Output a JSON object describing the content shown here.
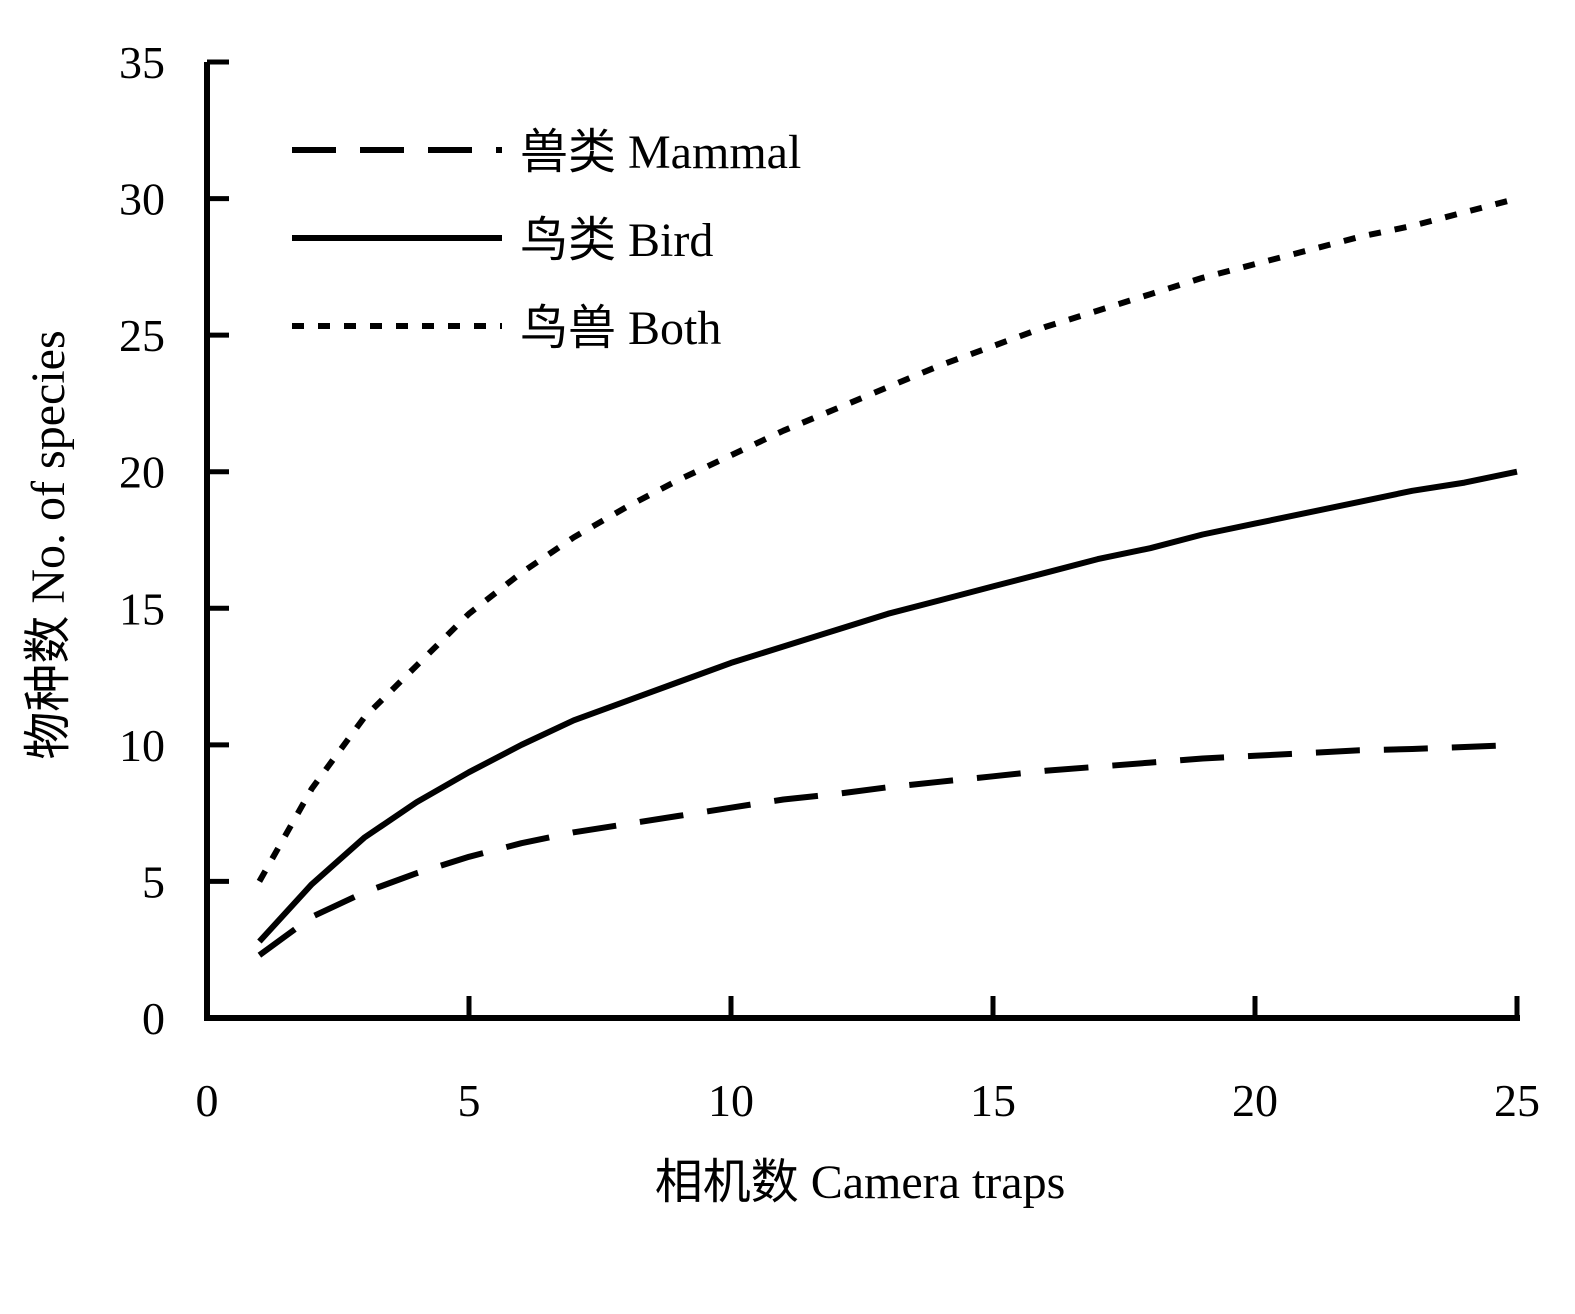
{
  "chart_data": {
    "type": "line",
    "title": "",
    "xlabel": "相机数 Camera traps",
    "ylabel": "物种数 No. of species",
    "xlim": [
      0,
      25
    ],
    "ylim": [
      0,
      35
    ],
    "x_ticks": [
      "0",
      "5",
      "10",
      "15",
      "20",
      "25"
    ],
    "y_ticks": [
      "0",
      "5",
      "10",
      "15",
      "20",
      "25",
      "30",
      "35"
    ],
    "grid": false,
    "legend_position": "top-left",
    "series": [
      {
        "name": "兽类 Mammal",
        "style": "dashed",
        "x": [
          1,
          2,
          3,
          4,
          5,
          6,
          7,
          8,
          9,
          10,
          11,
          12,
          13,
          14,
          15,
          16,
          17,
          18,
          19,
          20,
          21,
          22,
          23,
          24,
          25
        ],
        "y": [
          2.3,
          3.7,
          4.6,
          5.3,
          5.9,
          6.4,
          6.8,
          7.1,
          7.4,
          7.7,
          8.0,
          8.2,
          8.45,
          8.65,
          8.85,
          9.05,
          9.2,
          9.35,
          9.5,
          9.6,
          9.7,
          9.8,
          9.85,
          9.92,
          10.0
        ]
      },
      {
        "name": "鸟类 Bird",
        "style": "solid",
        "x": [
          1,
          2,
          3,
          4,
          5,
          6,
          7,
          8,
          9,
          10,
          11,
          12,
          13,
          14,
          15,
          16,
          17,
          18,
          19,
          20,
          21,
          22,
          23,
          24,
          25
        ],
        "y": [
          2.8,
          4.9,
          6.6,
          7.9,
          9.0,
          10.0,
          10.9,
          11.6,
          12.3,
          13.0,
          13.6,
          14.2,
          14.8,
          15.3,
          15.8,
          16.3,
          16.8,
          17.2,
          17.7,
          18.1,
          18.5,
          18.9,
          19.3,
          19.6,
          20.0
        ]
      },
      {
        "name": "鸟兽 Both",
        "style": "dotted",
        "x": [
          1,
          2,
          3,
          4,
          5,
          6,
          7,
          8,
          9,
          10,
          11,
          12,
          13,
          14,
          15,
          16,
          17,
          18,
          19,
          20,
          21,
          22,
          23,
          24,
          25
        ],
        "y": [
          5.0,
          8.4,
          11.0,
          12.9,
          14.8,
          16.3,
          17.6,
          18.7,
          19.7,
          20.6,
          21.5,
          22.3,
          23.1,
          23.9,
          24.6,
          25.3,
          25.9,
          26.5,
          27.1,
          27.6,
          28.1,
          28.6,
          29.0,
          29.5,
          30.0
        ]
      }
    ]
  }
}
